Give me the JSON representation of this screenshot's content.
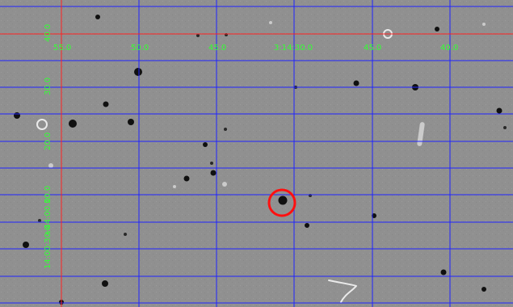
{
  "colors": {
    "background": "#909090",
    "grid_blue": "#1f24ff",
    "reference_red": "#ff2222",
    "label_green": "#33ff33",
    "target_marker": "#ff1010"
  },
  "grid_labels": {
    "x_ticks": [
      "55.0",
      "50.0",
      "45.0",
      "3:14:30.0",
      "45.0",
      "40.0"
    ],
    "y_ticks": [
      "40.0",
      "30.0",
      "20.0",
      "10.0",
      "+44:00.0",
      "14:00:30.0"
    ]
  },
  "marker": {
    "type": "circle",
    "color": "target_marker"
  }
}
